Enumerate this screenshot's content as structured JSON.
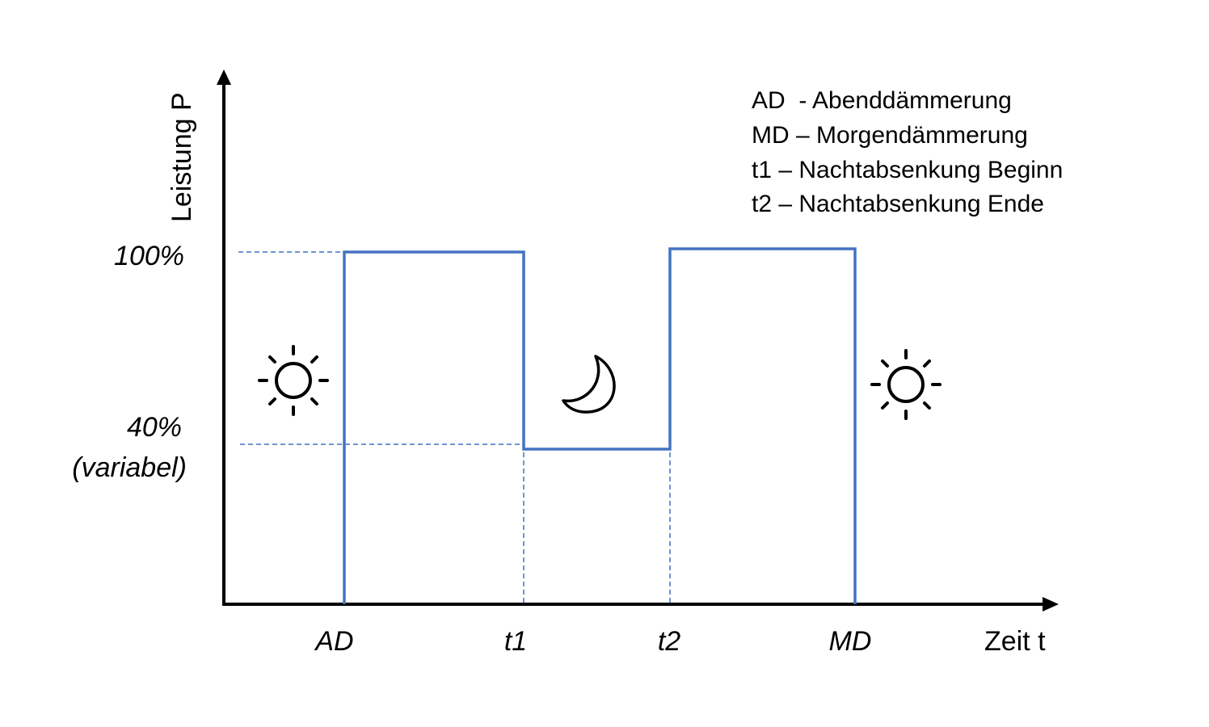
{
  "diagram": {
    "y_axis_label": "Leistung  P",
    "x_axis_label": "Zeit t",
    "y_ticks": [
      {
        "id": "100",
        "text": "100%",
        "level": 100
      },
      {
        "id": "40",
        "text": "40%",
        "subtext": "(variabel)",
        "level": 40
      }
    ],
    "x_ticks": [
      {
        "id": "ad",
        "text": "AD"
      },
      {
        "id": "t1",
        "text": "t1"
      },
      {
        "id": "t2",
        "text": "t2"
      },
      {
        "id": "md",
        "text": "MD"
      }
    ],
    "legend": [
      "AD  - Abenddämmerung",
      "MD – Morgendämmerung",
      "t1 – Nachtabsenkung Beginn",
      "t2 – Nachtabsenkung Ende"
    ],
    "profile_levels": {
      "before_AD": 0,
      "AD_to_t1": 100,
      "t1_to_t2": 40,
      "t2_to_MD": 100,
      "after_MD": 0
    },
    "icons": [
      "sun-icon",
      "moon-icon",
      "sun-icon"
    ],
    "colors": {
      "line": "#4472c4",
      "axis": "#000000",
      "dashed": "#4472c4"
    }
  }
}
